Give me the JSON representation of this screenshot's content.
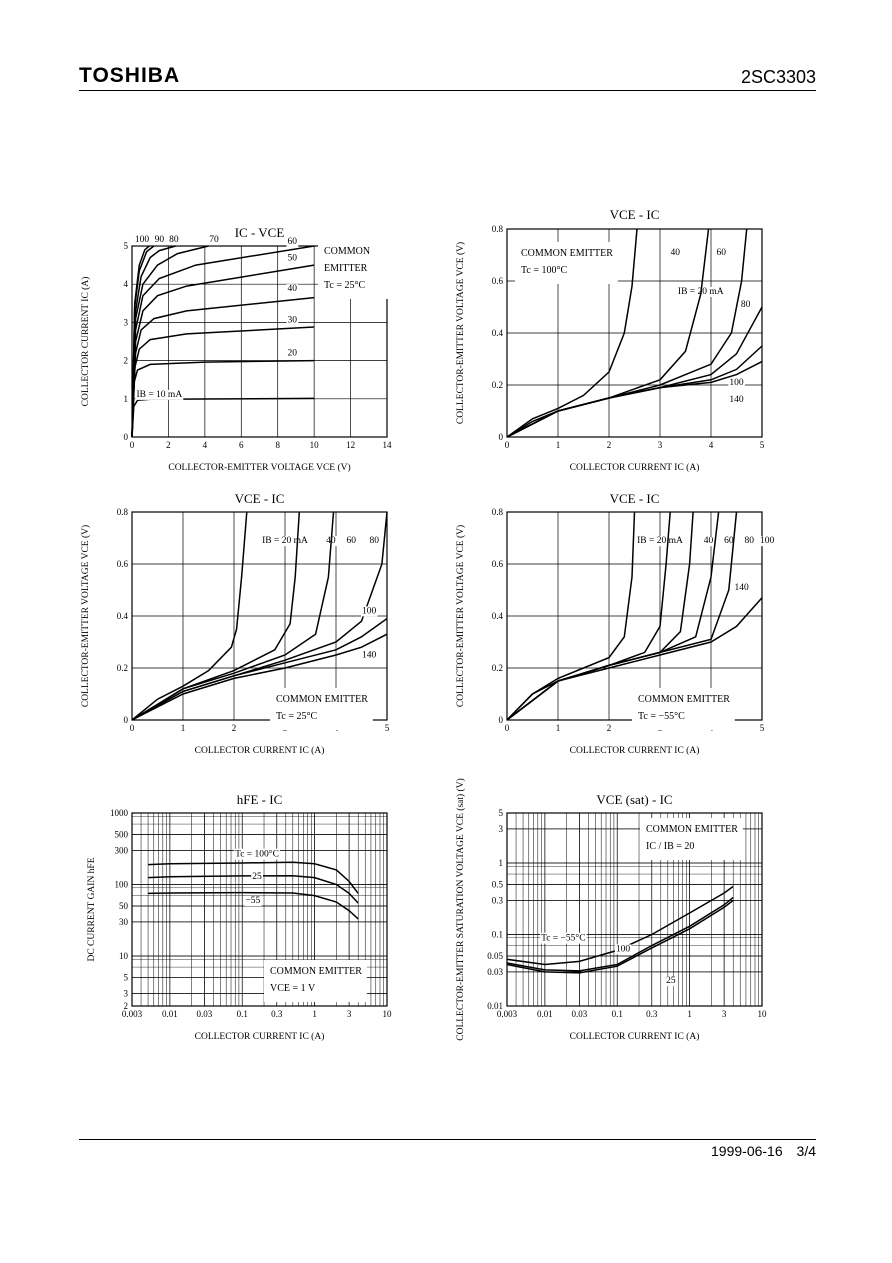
{
  "header": {
    "brand": "TOSHIBA",
    "part_number": "2SC3303"
  },
  "footer": {
    "date": "1999-06-16",
    "page": "3/4"
  },
  "chart_data": [
    {
      "id": "ic_vce",
      "type": "line",
      "title": "IC - VCE",
      "xlabel": "COLLECTOR-EMITTER VOLTAGE VCE (V)",
      "ylabel": "COLLECTOR CURRENT IC (A)",
      "xlim": [
        0,
        14
      ],
      "ylim": [
        0,
        5
      ],
      "xticks": [
        0,
        2,
        4,
        6,
        8,
        10,
        12,
        14
      ],
      "yticks": [
        0,
        1,
        2,
        3,
        4,
        5
      ],
      "legend_text": [
        "COMMON",
        "EMITTER",
        "Tc = 25°C"
      ],
      "series": [
        {
          "name": "IB = 10 mA",
          "x": [
            0,
            0.1,
            0.3,
            1,
            10
          ],
          "y": [
            0,
            0.8,
            0.96,
            0.99,
            1.01
          ]
        },
        {
          "name": "20",
          "x": [
            0,
            0.1,
            0.3,
            1,
            4,
            10
          ],
          "y": [
            0,
            1.4,
            1.75,
            1.9,
            1.96,
            2.0
          ]
        },
        {
          "name": "30",
          "x": [
            0,
            0.15,
            0.4,
            1,
            3,
            10
          ],
          "y": [
            0,
            1.8,
            2.3,
            2.55,
            2.7,
            2.88
          ]
        },
        {
          "name": "40",
          "x": [
            0,
            0.2,
            0.5,
            1.2,
            3,
            10
          ],
          "y": [
            0,
            2.2,
            2.8,
            3.1,
            3.3,
            3.65
          ]
        },
        {
          "name": "50",
          "x": [
            0,
            0.2,
            0.6,
            1.4,
            3,
            10
          ],
          "y": [
            0,
            2.5,
            3.3,
            3.7,
            3.95,
            4.5
          ]
        },
        {
          "name": "60",
          "x": [
            0,
            0.2,
            0.6,
            1.5,
            3.5,
            10
          ],
          "y": [
            0,
            2.8,
            3.7,
            4.15,
            4.5,
            5.0
          ]
        },
        {
          "name": "70",
          "x": [
            0,
            0.2,
            0.6,
            1.4,
            2.5,
            4.2
          ],
          "y": [
            0,
            3.1,
            4.0,
            4.5,
            4.8,
            5.0
          ]
        },
        {
          "name": "80",
          "x": [
            0,
            0.2,
            0.5,
            1.0,
            1.5,
            2.4
          ],
          "y": [
            0,
            3.3,
            4.2,
            4.7,
            4.88,
            5.0
          ]
        },
        {
          "name": "90",
          "x": [
            0,
            0.15,
            0.4,
            0.8,
            1.2
          ],
          "y": [
            0,
            3.4,
            4.35,
            4.85,
            5.0
          ]
        },
        {
          "name": "100",
          "x": [
            0,
            0.15,
            0.4,
            0.7,
            0.95
          ],
          "y": [
            0,
            3.5,
            4.5,
            4.9,
            5.0
          ]
        }
      ]
    },
    {
      "id": "vce_ic_100",
      "type": "line",
      "title": "VCE - IC",
      "xlabel": "COLLECTOR CURRENT IC (A)",
      "ylabel": "COLLECTOR-EMITTER VOLTAGE VCE (V)",
      "xlim": [
        0,
        5
      ],
      "ylim": [
        0,
        0.8
      ],
      "xticks": [
        0,
        1,
        2,
        3,
        4,
        5
      ],
      "yticks": [
        0,
        0.2,
        0.4,
        0.6,
        0.8
      ],
      "legend_text": [
        "COMMON EMITTER",
        "Tc = 100°C"
      ],
      "series": [
        {
          "name": "IB = 20 mA",
          "x": [
            0,
            0.5,
            1,
            1.5,
            2,
            2.3,
            2.45,
            2.55
          ],
          "y": [
            0,
            0.07,
            0.11,
            0.16,
            0.25,
            0.4,
            0.58,
            0.8
          ]
        },
        {
          "name": "40",
          "x": [
            0,
            0.5,
            1,
            2,
            3,
            3.5,
            3.8,
            3.95
          ],
          "y": [
            0,
            0.06,
            0.1,
            0.15,
            0.22,
            0.33,
            0.55,
            0.8
          ]
        },
        {
          "name": "60",
          "x": [
            0,
            1,
            2,
            3,
            4,
            4.4,
            4.6,
            4.7
          ],
          "y": [
            0,
            0.1,
            0.15,
            0.2,
            0.28,
            0.4,
            0.6,
            0.8
          ]
        },
        {
          "name": "80",
          "x": [
            0,
            1,
            2,
            3,
            4,
            4.5,
            5
          ],
          "y": [
            0,
            0.1,
            0.15,
            0.19,
            0.24,
            0.32,
            0.5
          ]
        },
        {
          "name": "100",
          "x": [
            0,
            1,
            2,
            3,
            4,
            4.5,
            5
          ],
          "y": [
            0,
            0.1,
            0.15,
            0.19,
            0.22,
            0.26,
            0.35
          ]
        },
        {
          "name": "140",
          "x": [
            0,
            1,
            2,
            3,
            4,
            4.5,
            5
          ],
          "y": [
            0,
            0.1,
            0.15,
            0.19,
            0.21,
            0.24,
            0.29
          ]
        }
      ]
    },
    {
      "id": "vce_ic_25",
      "type": "line",
      "title": "VCE - IC",
      "xlabel": "COLLECTOR CURRENT IC (A)",
      "ylabel": "COLLECTOR-EMITTER VOLTAGE VCE (V)",
      "xlim": [
        0,
        5
      ],
      "ylim": [
        0,
        0.8
      ],
      "xticks": [
        0,
        1,
        2,
        3,
        4,
        5
      ],
      "yticks": [
        0,
        0.2,
        0.4,
        0.6,
        0.8
      ],
      "legend_text": [
        "COMMON EMITTER",
        "Tc = 25°C"
      ],
      "series": [
        {
          "name": "IB = 20 mA",
          "x": [
            0,
            0.5,
            1,
            1.5,
            1.95,
            2.05,
            2.15,
            2.25
          ],
          "y": [
            0,
            0.08,
            0.13,
            0.19,
            0.28,
            0.35,
            0.55,
            0.8
          ]
        },
        {
          "name": "40",
          "x": [
            0,
            1,
            2,
            2.8,
            3.1,
            3.2,
            3.28
          ],
          "y": [
            0,
            0.12,
            0.19,
            0.27,
            0.37,
            0.55,
            0.8
          ]
        },
        {
          "name": "60",
          "x": [
            0,
            1,
            2,
            3,
            3.6,
            3.85,
            3.95
          ],
          "y": [
            0,
            0.12,
            0.18,
            0.25,
            0.33,
            0.55,
            0.8
          ]
        },
        {
          "name": "80",
          "x": [
            0,
            1,
            2,
            3,
            4,
            4.5,
            4.9,
            5
          ],
          "y": [
            0,
            0.11,
            0.17,
            0.23,
            0.3,
            0.38,
            0.6,
            0.8
          ]
        },
        {
          "name": "100",
          "x": [
            0,
            1,
            2,
            3,
            4,
            4.5,
            5
          ],
          "y": [
            0,
            0.11,
            0.17,
            0.22,
            0.27,
            0.32,
            0.39
          ]
        },
        {
          "name": "140",
          "x": [
            0,
            1,
            2,
            3,
            4,
            4.5,
            5
          ],
          "y": [
            0,
            0.1,
            0.16,
            0.2,
            0.25,
            0.28,
            0.33
          ]
        }
      ]
    },
    {
      "id": "vce_ic_m55",
      "type": "line",
      "title": "VCE - IC",
      "xlabel": "COLLECTOR CURRENT IC (A)",
      "ylabel": "COLLECTOR-EMITTER VOLTAGE VCE (V)",
      "xlim": [
        0,
        5
      ],
      "ylim": [
        0,
        0.8
      ],
      "xticks": [
        0,
        1,
        2,
        3,
        4,
        5
      ],
      "yticks": [
        0,
        0.2,
        0.4,
        0.6,
        0.8
      ],
      "legend_text": [
        "COMMON EMITTER",
        "Tc = −55°C"
      ],
      "series": [
        {
          "name": "IB = 20 mA",
          "x": [
            0,
            0.5,
            1,
            1.5,
            2,
            2.3,
            2.45,
            2.5
          ],
          "y": [
            0,
            0.1,
            0.16,
            0.2,
            0.24,
            0.32,
            0.55,
            0.8
          ]
        },
        {
          "name": "40",
          "x": [
            0,
            0.5,
            1,
            2,
            2.7,
            3.0,
            3.12,
            3.2
          ],
          "y": [
            0,
            0.1,
            0.15,
            0.21,
            0.26,
            0.36,
            0.6,
            0.8
          ]
        },
        {
          "name": "60",
          "x": [
            0,
            1,
            2,
            3,
            3.4,
            3.58,
            3.65
          ],
          "y": [
            0,
            0.15,
            0.21,
            0.26,
            0.34,
            0.6,
            0.8
          ]
        },
        {
          "name": "80",
          "x": [
            0,
            1,
            2,
            3,
            3.7,
            4.0,
            4.15
          ],
          "y": [
            0,
            0.15,
            0.21,
            0.26,
            0.32,
            0.55,
            0.8
          ]
        },
        {
          "name": "100",
          "x": [
            0,
            1,
            2,
            3,
            4,
            4.35,
            4.5
          ],
          "y": [
            0,
            0.15,
            0.21,
            0.26,
            0.31,
            0.5,
            0.8
          ]
        },
        {
          "name": "140",
          "x": [
            0,
            1,
            2,
            3,
            4,
            4.5,
            5
          ],
          "y": [
            0,
            0.15,
            0.2,
            0.25,
            0.3,
            0.36,
            0.47
          ]
        }
      ]
    },
    {
      "id": "hfe_ic",
      "type": "line",
      "title": "hFE - IC",
      "xlabel": "COLLECTOR CURRENT IC (A)",
      "ylabel": "DC CURRENT GAIN hFE",
      "xscale": "log",
      "yscale": "log",
      "xlim": [
        0.003,
        10
      ],
      "ylim": [
        2,
        1000
      ],
      "xticks": [
        0.003,
        0.01,
        0.03,
        0.1,
        0.3,
        1,
        3,
        10
      ],
      "xtick_labels": [
        "0.003",
        "0.01",
        "0.03",
        "0.1",
        "0.3",
        "1",
        "3",
        "10"
      ],
      "yticks": [
        2,
        3,
        5,
        10,
        30,
        50,
        100,
        300,
        500,
        1000
      ],
      "ytick_labels": [
        "2",
        "3",
        "5",
        "10",
        "30",
        "50",
        "100",
        "300",
        "500",
        "1000"
      ],
      "legend_text": [
        "COMMON EMITTER",
        "VCE = 1 V"
      ],
      "series": [
        {
          "name": "Tc = 100°C",
          "x": [
            0.005,
            0.01,
            0.1,
            0.5,
            1,
            2,
            3,
            4
          ],
          "y": [
            190,
            195,
            200,
            205,
            195,
            160,
            110,
            75
          ]
        },
        {
          "name": "25",
          "x": [
            0.005,
            0.01,
            0.1,
            0.5,
            1,
            2,
            3,
            4
          ],
          "y": [
            125,
            128,
            132,
            133,
            125,
            100,
            75,
            55
          ]
        },
        {
          "name": "−55",
          "x": [
            0.005,
            0.01,
            0.1,
            0.5,
            1,
            2,
            3,
            4
          ],
          "y": [
            75,
            76,
            77,
            76,
            70,
            57,
            43,
            33
          ]
        }
      ]
    },
    {
      "id": "vcesat_ic",
      "type": "line",
      "title": "VCE (sat) - IC",
      "xlabel": "COLLECTOR CURRENT IC (A)",
      "ylabel": "COLLECTOR-EMITTER SATURATION VOLTAGE VCE (sat) (V)",
      "xscale": "log",
      "yscale": "log",
      "xlim": [
        0.003,
        10
      ],
      "ylim": [
        0.01,
        5
      ],
      "xticks": [
        0.003,
        0.01,
        0.03,
        0.1,
        0.3,
        1,
        3,
        10
      ],
      "xtick_labels": [
        "0.003",
        "0.01",
        "0.03",
        "0.1",
        "0.3",
        "1",
        "3",
        "10"
      ],
      "yticks": [
        0.01,
        0.03,
        0.05,
        0.1,
        0.3,
        0.5,
        1,
        3,
        5
      ],
      "ytick_labels": [
        "0.01",
        "0.03",
        "0.05",
        "0.1",
        "0.3",
        "0.5",
        "1",
        "3",
        "5"
      ],
      "legend_text": [
        "COMMON EMITTER",
        "IC / IB = 20"
      ],
      "series": [
        {
          "name": "Tc = −55°C",
          "x": [
            0.003,
            0.01,
            0.03,
            0.1,
            0.3,
            1,
            3,
            4
          ],
          "y": [
            0.045,
            0.038,
            0.042,
            0.06,
            0.1,
            0.2,
            0.38,
            0.47
          ]
        },
        {
          "name": "100",
          "x": [
            0.003,
            0.01,
            0.03,
            0.1,
            0.3,
            1,
            3,
            4
          ],
          "y": [
            0.04,
            0.032,
            0.031,
            0.038,
            0.07,
            0.13,
            0.26,
            0.33
          ]
        },
        {
          "name": "25",
          "x": [
            0.003,
            0.01,
            0.03,
            0.1,
            0.3,
            1,
            3,
            4
          ],
          "y": [
            0.038,
            0.03,
            0.029,
            0.036,
            0.065,
            0.12,
            0.24,
            0.3
          ]
        }
      ]
    }
  ]
}
